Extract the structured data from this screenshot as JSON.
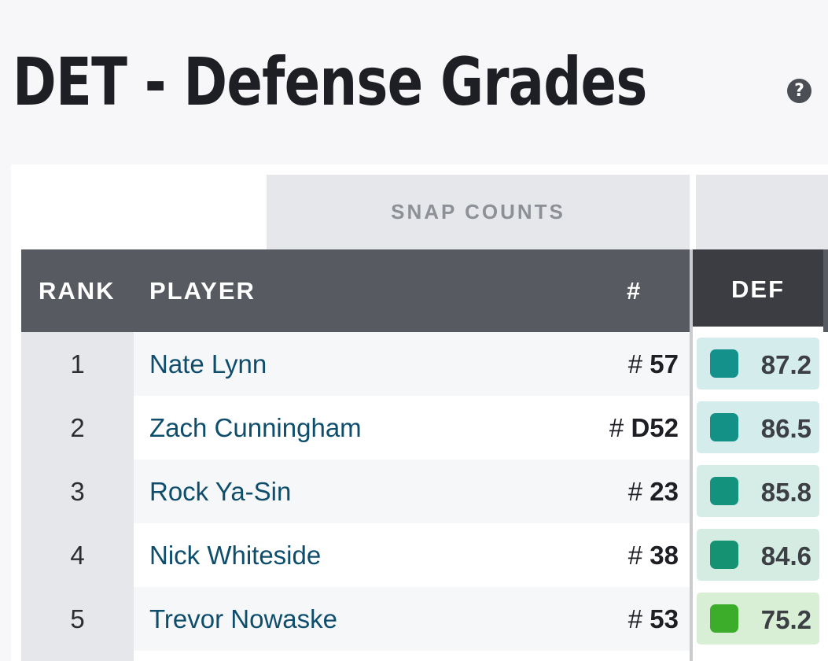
{
  "page": {
    "title": "DET - Defense Grades",
    "help_icon": "question-circle-icon"
  },
  "table": {
    "group_header": "SNAP COUNTS",
    "columns": {
      "rank": "RANK",
      "player": "PLAYER",
      "number": "#",
      "def": "DEF"
    },
    "rows": [
      {
        "rank": "1",
        "player": "Nate Lynn",
        "hash": "#",
        "jersey": "57",
        "grade": "87.2",
        "swatch": "#14918a",
        "cell_bg": "#d5ecec"
      },
      {
        "rank": "2",
        "player": "Zach Cunningham",
        "hash": "#",
        "jersey": "D52",
        "grade": "86.5",
        "swatch": "#149186",
        "cell_bg": "#d5ecec"
      },
      {
        "rank": "3",
        "player": "Rock Ya-Sin",
        "hash": "#",
        "jersey": "23",
        "grade": "85.8",
        "swatch": "#13927d",
        "cell_bg": "#d5ece7"
      },
      {
        "rank": "4",
        "player": "Nick Whiteside",
        "hash": "#",
        "jersey": "38",
        "grade": "84.6",
        "swatch": "#149272",
        "cell_bg": "#d5ece3"
      },
      {
        "rank": "5",
        "player": "Trevor Nowaske",
        "hash": "#",
        "jersey": "53",
        "grade": "75.2",
        "swatch": "#3bad2a",
        "cell_bg": "#d8efd6"
      }
    ]
  }
}
